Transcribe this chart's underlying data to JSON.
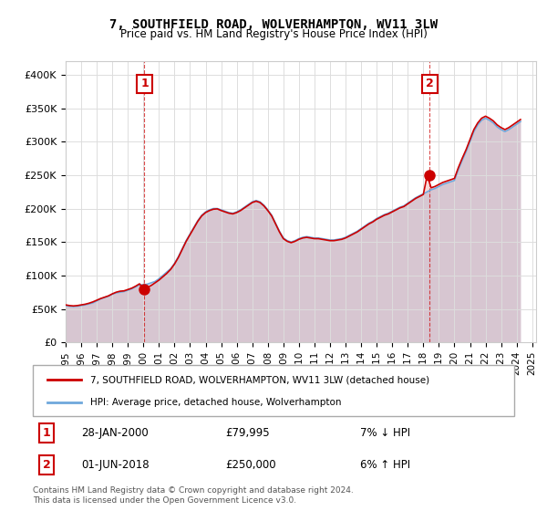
{
  "title": "7, SOUTHFIELD ROAD, WOLVERHAMPTON, WV11 3LW",
  "subtitle": "Price paid vs. HM Land Registry's House Price Index (HPI)",
  "xlabel": "",
  "ylabel": "",
  "ylim": [
    0,
    420000
  ],
  "yticks": [
    0,
    50000,
    100000,
    150000,
    200000,
    250000,
    300000,
    350000,
    400000
  ],
  "ytick_labels": [
    "£0",
    "£50K",
    "£100K",
    "£150K",
    "£200K",
    "£250K",
    "£300K",
    "£350K",
    "£400K"
  ],
  "hpi_color": "#6fa8dc",
  "price_color": "#cc0000",
  "marker_color": "#cc0000",
  "annotation_color": "#cc0000",
  "background_color": "#ffffff",
  "grid_color": "#dddddd",
  "legend_label_price": "7, SOUTHFIELD ROAD, WOLVERHAMPTON, WV11 3LW (detached house)",
  "legend_label_hpi": "HPI: Average price, detached house, Wolverhampton",
  "sale1_label": "1",
  "sale1_date": "28-JAN-2000",
  "sale1_price": "£79,995",
  "sale1_hpi": "7% ↓ HPI",
  "sale1_year": 2000.07,
  "sale1_value": 79995,
  "sale2_label": "2",
  "sale2_date": "01-JUN-2018",
  "sale2_price": "£250,000",
  "sale2_hpi": "6% ↑ HPI",
  "sale2_year": 2018.42,
  "sale2_value": 250000,
  "footer": "Contains HM Land Registry data © Crown copyright and database right 2024.\nThis data is licensed under the Open Government Licence v3.0.",
  "hpi_years": [
    1995.0,
    1995.25,
    1995.5,
    1995.75,
    1996.0,
    1996.25,
    1996.5,
    1996.75,
    1997.0,
    1997.25,
    1997.5,
    1997.75,
    1998.0,
    1998.25,
    1998.5,
    1998.75,
    1999.0,
    1999.25,
    1999.5,
    1999.75,
    2000.0,
    2000.25,
    2000.5,
    2000.75,
    2001.0,
    2001.25,
    2001.5,
    2001.75,
    2002.0,
    2002.25,
    2002.5,
    2002.75,
    2003.0,
    2003.25,
    2003.5,
    2003.75,
    2004.0,
    2004.25,
    2004.5,
    2004.75,
    2005.0,
    2005.25,
    2005.5,
    2005.75,
    2006.0,
    2006.25,
    2006.5,
    2006.75,
    2007.0,
    2007.25,
    2007.5,
    2007.75,
    2008.0,
    2008.25,
    2008.5,
    2008.75,
    2009.0,
    2009.25,
    2009.5,
    2009.75,
    2010.0,
    2010.25,
    2010.5,
    2010.75,
    2011.0,
    2011.25,
    2011.5,
    2011.75,
    2012.0,
    2012.25,
    2012.5,
    2012.75,
    2013.0,
    2013.25,
    2013.5,
    2013.75,
    2014.0,
    2014.25,
    2014.5,
    2014.75,
    2015.0,
    2015.25,
    2015.5,
    2015.75,
    2016.0,
    2016.25,
    2016.5,
    2016.75,
    2017.0,
    2017.25,
    2017.5,
    2017.75,
    2018.0,
    2018.25,
    2018.5,
    2018.75,
    2019.0,
    2019.25,
    2019.5,
    2019.75,
    2020.0,
    2020.25,
    2020.5,
    2020.75,
    2021.0,
    2021.25,
    2021.5,
    2021.75,
    2022.0,
    2022.25,
    2022.5,
    2022.75,
    2023.0,
    2023.25,
    2023.5,
    2023.75,
    2024.0,
    2024.25
  ],
  "hpi_values": [
    55000,
    54000,
    53500,
    54000,
    55000,
    56000,
    57500,
    59000,
    62000,
    65000,
    67000,
    69000,
    72000,
    74000,
    75000,
    76000,
    78000,
    80000,
    83000,
    86000,
    86000,
    87000,
    89000,
    91000,
    95000,
    100000,
    105000,
    110000,
    118000,
    128000,
    140000,
    152000,
    162000,
    172000,
    182000,
    190000,
    195000,
    198000,
    200000,
    200000,
    198000,
    196000,
    194000,
    193000,
    195000,
    198000,
    202000,
    206000,
    210000,
    212000,
    210000,
    205000,
    198000,
    190000,
    178000,
    166000,
    156000,
    152000,
    150000,
    152000,
    155000,
    157000,
    158000,
    157000,
    156000,
    156000,
    155000,
    154000,
    153000,
    153000,
    154000,
    155000,
    157000,
    160000,
    163000,
    166000,
    170000,
    174000,
    178000,
    181000,
    185000,
    188000,
    191000,
    193000,
    196000,
    199000,
    202000,
    204000,
    208000,
    212000,
    216000,
    219000,
    222000,
    225000,
    228000,
    230000,
    233000,
    236000,
    238000,
    240000,
    242000,
    258000,
    272000,
    285000,
    300000,
    315000,
    325000,
    332000,
    335000,
    332000,
    328000,
    322000,
    318000,
    315000,
    318000,
    322000,
    326000,
    330000
  ],
  "price_years": [
    1995.0,
    1995.25,
    1995.5,
    1995.75,
    1996.0,
    1996.25,
    1996.5,
    1996.75,
    1997.0,
    1997.25,
    1997.5,
    1997.75,
    1998.0,
    1998.25,
    1998.5,
    1998.75,
    1999.0,
    1999.25,
    1999.5,
    1999.75,
    2000.0,
    2000.25,
    2000.5,
    2000.75,
    2001.0,
    2001.25,
    2001.5,
    2001.75,
    2002.0,
    2002.25,
    2002.5,
    2002.75,
    2003.0,
    2003.25,
    2003.5,
    2003.75,
    2004.0,
    2004.25,
    2004.5,
    2004.75,
    2005.0,
    2005.25,
    2005.5,
    2005.75,
    2006.0,
    2006.25,
    2006.5,
    2006.75,
    2007.0,
    2007.25,
    2007.5,
    2007.75,
    2008.0,
    2008.25,
    2008.5,
    2008.75,
    2009.0,
    2009.25,
    2009.5,
    2009.75,
    2010.0,
    2010.25,
    2010.5,
    2010.75,
    2011.0,
    2011.25,
    2011.5,
    2011.75,
    2012.0,
    2012.25,
    2012.5,
    2012.75,
    2013.0,
    2013.25,
    2013.5,
    2013.75,
    2014.0,
    2014.25,
    2014.5,
    2014.75,
    2015.0,
    2015.25,
    2015.5,
    2015.75,
    2016.0,
    2016.25,
    2016.5,
    2016.75,
    2017.0,
    2017.25,
    2017.5,
    2017.75,
    2018.0,
    2018.25,
    2018.5,
    2018.75,
    2019.0,
    2019.25,
    2019.5,
    2019.75,
    2020.0,
    2020.25,
    2020.5,
    2020.75,
    2021.0,
    2021.25,
    2021.5,
    2021.75,
    2022.0,
    2022.25,
    2022.5,
    2022.75,
    2023.0,
    2023.25,
    2023.5,
    2023.75,
    2024.0,
    2024.25
  ],
  "price_values": [
    56000,
    55000,
    54500,
    55000,
    56000,
    57000,
    58500,
    60500,
    63000,
    65500,
    67500,
    69500,
    72500,
    75000,
    76500,
    77000,
    79000,
    81000,
    84000,
    87500,
    79995,
    82000,
    85000,
    89000,
    93000,
    98000,
    103000,
    109000,
    117000,
    127000,
    139000,
    151000,
    161000,
    171000,
    181000,
    189000,
    194000,
    197000,
    199000,
    199500,
    197000,
    195000,
    193000,
    192000,
    194000,
    197000,
    201000,
    205000,
    209000,
    211000,
    209000,
    204000,
    197000,
    189000,
    177000,
    165000,
    155000,
    151000,
    149000,
    151000,
    154000,
    156000,
    157000,
    156000,
    155000,
    155000,
    154000,
    153000,
    152000,
    152000,
    153000,
    154000,
    156000,
    159000,
    162000,
    165000,
    169000,
    173000,
    177000,
    180000,
    184000,
    187000,
    190000,
    192000,
    195000,
    198000,
    201000,
    203000,
    207000,
    211000,
    215000,
    218000,
    221000,
    250000,
    231000,
    233000,
    236000,
    239000,
    241000,
    243000,
    245000,
    261000,
    275000,
    288000,
    303000,
    318000,
    328000,
    335000,
    338000,
    335000,
    331000,
    325000,
    321000,
    318000,
    321000,
    325000,
    329000,
    333000
  ],
  "xtick_years": [
    1995,
    1996,
    1997,
    1998,
    1999,
    2000,
    2001,
    2002,
    2003,
    2004,
    2005,
    2006,
    2007,
    2008,
    2009,
    2010,
    2011,
    2012,
    2013,
    2014,
    2015,
    2016,
    2017,
    2018,
    2019,
    2020,
    2021,
    2022,
    2023,
    2024,
    2025
  ]
}
